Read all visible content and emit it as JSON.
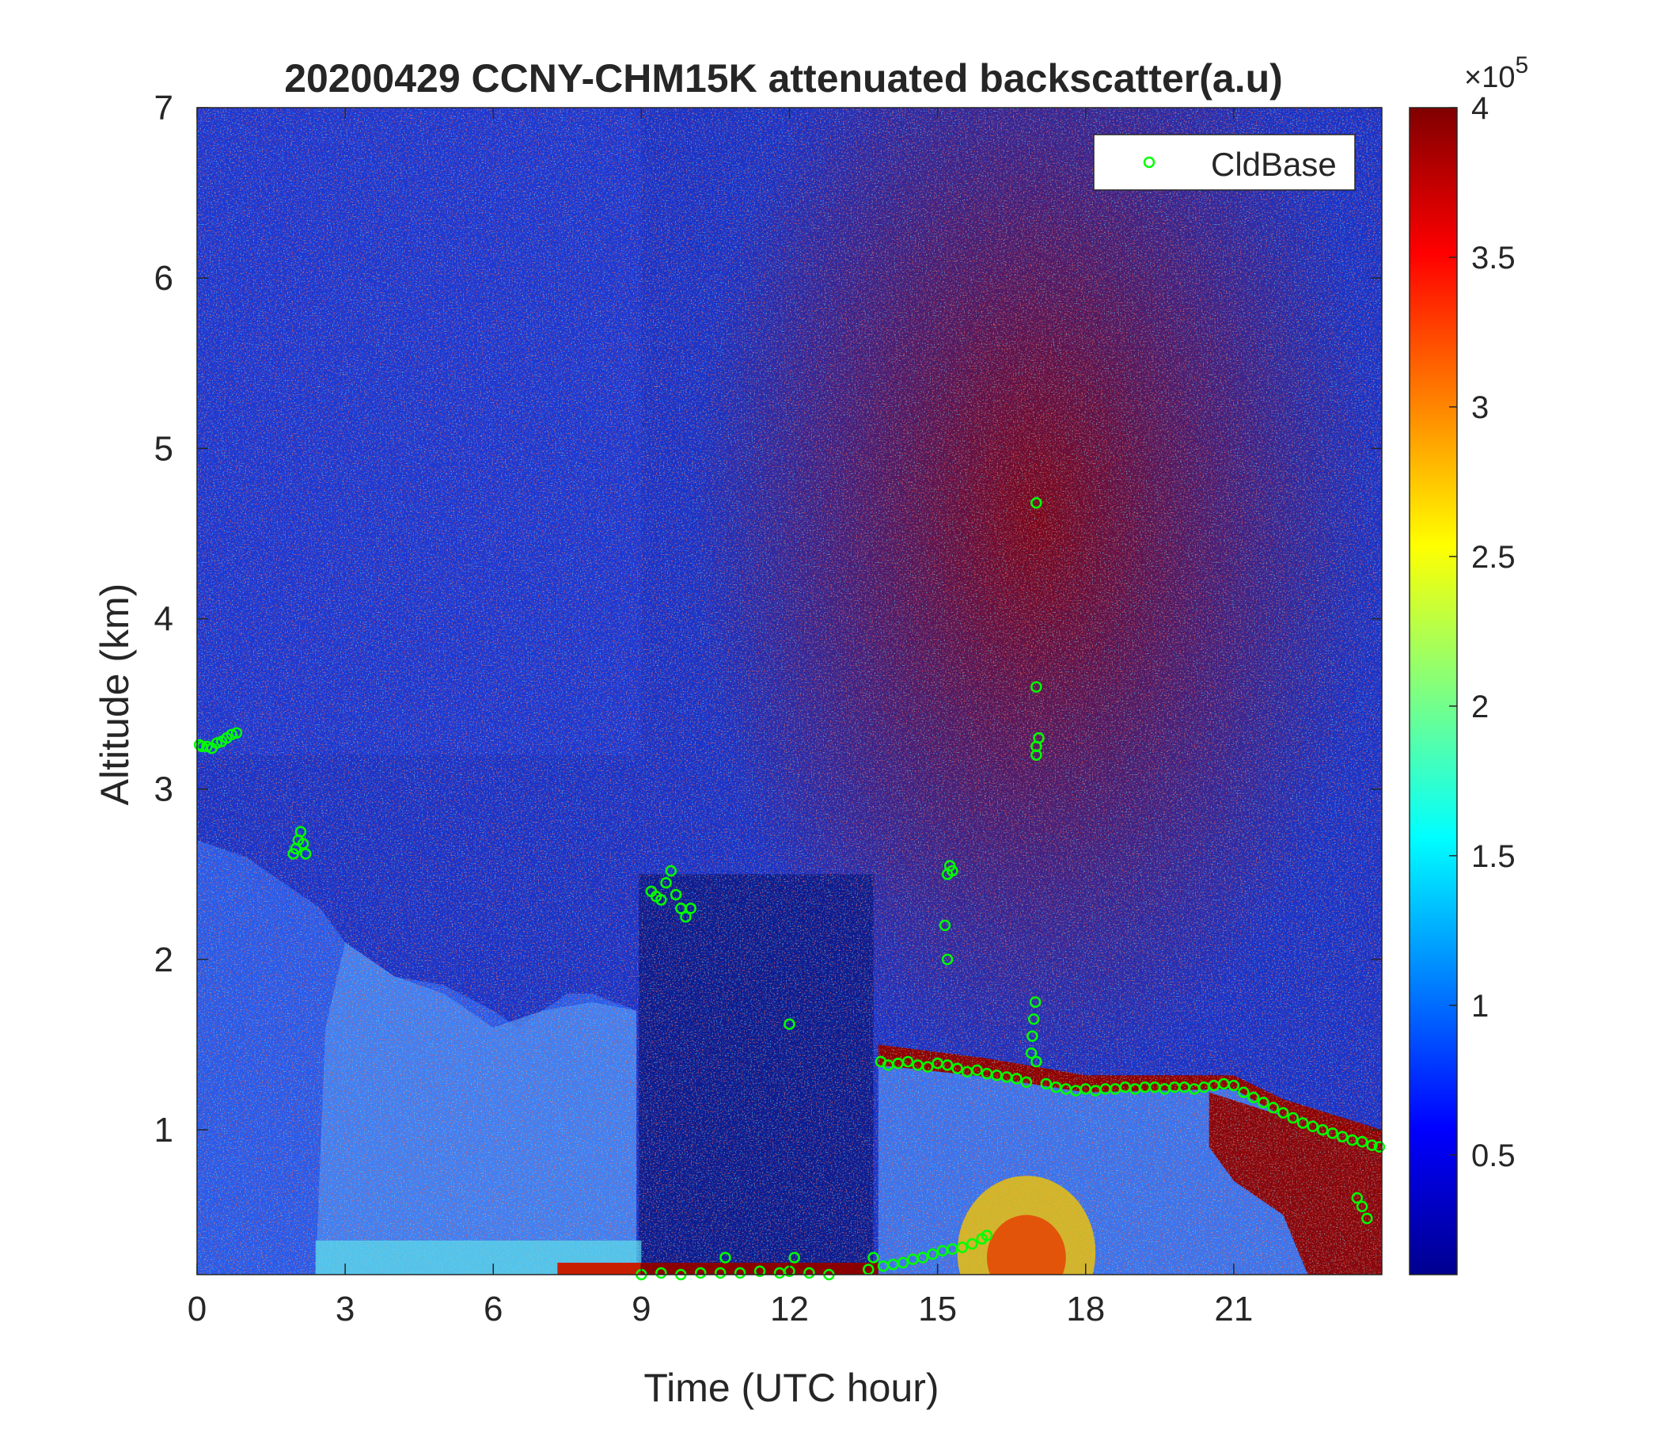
{
  "chart_data": {
    "type": "heatmap",
    "title": "20200429 CCNY-CHM15K attenuated backscatter(a.u)",
    "xlabel": "Time (UTC hour)",
    "ylabel": "Altitude (km)",
    "xlim": [
      0,
      24
    ],
    "ylim": [
      0.15,
      7
    ],
    "x_ticks": [
      0,
      3,
      6,
      9,
      12,
      15,
      18,
      21
    ],
    "y_ticks": [
      1,
      2,
      3,
      4,
      5,
      6,
      7
    ],
    "colorbar": {
      "range": [
        0.1,
        4
      ],
      "ticks": [
        0.5,
        1,
        1.5,
        2,
        2.5,
        3,
        3.5,
        4
      ],
      "exponent_label": "×10",
      "exponent": "5",
      "colormap": "jet"
    },
    "legend": {
      "position": "top-right",
      "entries": [
        "CldBase"
      ]
    },
    "marker_color": "#00ff00",
    "series": [
      {
        "name": "CldBase",
        "type": "scatter",
        "points": [
          [
            0.05,
            3.26
          ],
          [
            0.1,
            3.25
          ],
          [
            0.2,
            3.25
          ],
          [
            0.3,
            3.24
          ],
          [
            0.4,
            3.27
          ],
          [
            0.5,
            3.28
          ],
          [
            0.6,
            3.3
          ],
          [
            0.7,
            3.32
          ],
          [
            0.8,
            3.33
          ],
          [
            1.95,
            2.62
          ],
          [
            2.0,
            2.65
          ],
          [
            2.05,
            2.7
          ],
          [
            2.1,
            2.75
          ],
          [
            2.15,
            2.68
          ],
          [
            2.2,
            2.62
          ],
          [
            9.2,
            2.4
          ],
          [
            9.3,
            2.37
          ],
          [
            9.4,
            2.35
          ],
          [
            9.5,
            2.45
          ],
          [
            9.6,
            2.52
          ],
          [
            9.7,
            2.38
          ],
          [
            9.8,
            2.3
          ],
          [
            9.9,
            2.25
          ],
          [
            10.0,
            2.3
          ],
          [
            9.0,
            0.15
          ],
          [
            9.4,
            0.16
          ],
          [
            9.8,
            0.15
          ],
          [
            10.2,
            0.16
          ],
          [
            10.6,
            0.16
          ],
          [
            10.7,
            0.25
          ],
          [
            11.0,
            0.16
          ],
          [
            11.4,
            0.17
          ],
          [
            11.8,
            0.16
          ],
          [
            12.0,
            0.17
          ],
          [
            12.1,
            0.25
          ],
          [
            12.4,
            0.16
          ],
          [
            12.8,
            0.15
          ],
          [
            12.0,
            1.62
          ],
          [
            13.6,
            0.18
          ],
          [
            13.7,
            0.25
          ],
          [
            13.9,
            0.2
          ],
          [
            14.1,
            0.21
          ],
          [
            14.3,
            0.22
          ],
          [
            14.5,
            0.24
          ],
          [
            14.7,
            0.25
          ],
          [
            14.9,
            0.27
          ],
          [
            15.1,
            0.29
          ],
          [
            15.3,
            0.3
          ],
          [
            15.5,
            0.31
          ],
          [
            15.7,
            0.33
          ],
          [
            15.9,
            0.36
          ],
          [
            16.0,
            0.38
          ],
          [
            13.85,
            1.4
          ],
          [
            14.0,
            1.38
          ],
          [
            14.2,
            1.39
          ],
          [
            14.4,
            1.4
          ],
          [
            14.6,
            1.38
          ],
          [
            14.8,
            1.37
          ],
          [
            15.0,
            1.39
          ],
          [
            15.2,
            1.38
          ],
          [
            15.4,
            1.36
          ],
          [
            15.6,
            1.34
          ],
          [
            15.8,
            1.35
          ],
          [
            16.0,
            1.33
          ],
          [
            16.2,
            1.32
          ],
          [
            16.4,
            1.31
          ],
          [
            16.6,
            1.3
          ],
          [
            16.8,
            1.28
          ],
          [
            16.9,
            1.45
          ],
          [
            16.92,
            1.55
          ],
          [
            16.95,
            1.65
          ],
          [
            16.98,
            1.75
          ],
          [
            17.0,
            1.4
          ],
          [
            17.2,
            1.27
          ],
          [
            17.4,
            1.25
          ],
          [
            17.6,
            1.24
          ],
          [
            17.8,
            1.23
          ],
          [
            18.0,
            1.24
          ],
          [
            18.2,
            1.23
          ],
          [
            18.4,
            1.24
          ],
          [
            18.6,
            1.24
          ],
          [
            18.8,
            1.25
          ],
          [
            19.0,
            1.24
          ],
          [
            19.2,
            1.25
          ],
          [
            19.4,
            1.25
          ],
          [
            19.6,
            1.24
          ],
          [
            19.8,
            1.25
          ],
          [
            20.0,
            1.25
          ],
          [
            20.2,
            1.24
          ],
          [
            20.4,
            1.25
          ],
          [
            20.6,
            1.26
          ],
          [
            20.8,
            1.27
          ],
          [
            21.0,
            1.26
          ],
          [
            21.2,
            1.22
          ],
          [
            21.4,
            1.19
          ],
          [
            21.6,
            1.16
          ],
          [
            21.8,
            1.13
          ],
          [
            22.0,
            1.1
          ],
          [
            22.2,
            1.07
          ],
          [
            22.4,
            1.04
          ],
          [
            22.6,
            1.02
          ],
          [
            22.8,
            1.0
          ],
          [
            23.0,
            0.98
          ],
          [
            23.2,
            0.96
          ],
          [
            23.4,
            0.94
          ],
          [
            23.6,
            0.93
          ],
          [
            23.8,
            0.91
          ],
          [
            23.95,
            0.9
          ],
          [
            15.2,
            2.5
          ],
          [
            15.25,
            2.55
          ],
          [
            15.3,
            2.52
          ],
          [
            15.15,
            2.2
          ],
          [
            15.2,
            2.0
          ],
          [
            17.0,
            4.68
          ],
          [
            17.0,
            3.6
          ],
          [
            17.05,
            3.3
          ],
          [
            17.0,
            3.25
          ],
          [
            17.0,
            3.2
          ],
          [
            23.5,
            0.6
          ],
          [
            23.6,
            0.55
          ],
          [
            23.7,
            0.48
          ]
        ]
      }
    ]
  }
}
